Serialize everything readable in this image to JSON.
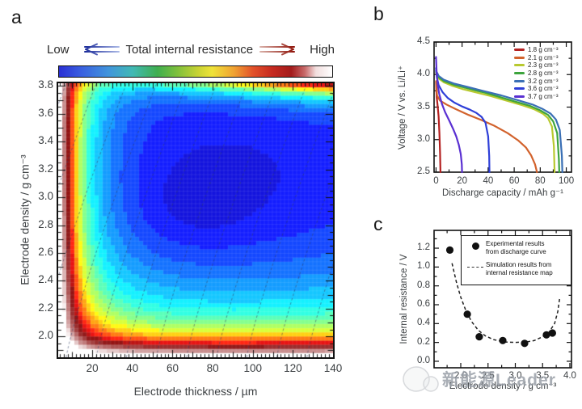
{
  "panel_labels": {
    "a": "a",
    "b": "b",
    "c": "c"
  },
  "watermark": {
    "text": "新能源Leader"
  },
  "chart_data": [
    {
      "id": "a",
      "type": "heatmap",
      "colorbar": {
        "low": "Low",
        "title": "Total internal resistance",
        "high": "High",
        "gradient_stops": [
          {
            "c": "#2a2fd4",
            "p": 0
          },
          {
            "c": "#3a5fe0",
            "p": 8
          },
          {
            "c": "#4194dc",
            "p": 18
          },
          {
            "c": "#41b9b4",
            "p": 27
          },
          {
            "c": "#3fae4f",
            "p": 36
          },
          {
            "c": "#7cbf3d",
            "p": 43
          },
          {
            "c": "#c9d334",
            "p": 51
          },
          {
            "c": "#efe339",
            "p": 56
          },
          {
            "c": "#f0a232",
            "p": 64
          },
          {
            "c": "#e2512a",
            "p": 71
          },
          {
            "c": "#c62a20",
            "p": 78
          },
          {
            "c": "#a31b1b",
            "p": 85
          },
          {
            "c": "#c86a6a",
            "p": 90
          },
          {
            "c": "#f2dede",
            "p": 94
          },
          {
            "c": "#ffffff",
            "p": 100
          }
        ]
      },
      "xlabel": "Electrode thickness / µm",
      "ylabel": "Electrode density / g cm⁻³",
      "x_ticks": [
        20,
        40,
        60,
        80,
        100,
        120,
        140
      ],
      "y_ticks": [
        2.0,
        2.2,
        2.4,
        2.6,
        2.8,
        3.0,
        3.2,
        3.4,
        3.6,
        3.8
      ],
      "x_range": [
        3,
        140
      ],
      "y_range": [
        1.85,
        3.82
      ],
      "pattern": "Blue low-resistance basin at mid thickness (40-120 µm) and density 2.6-3.4 with darkest minimum near 70 µm / 2.9 g cm-3; resistance rises through green-yellow-red to white toward thin electrodes (<20 µm) and low density (<2.1), and a thin yellow-red band along the top edge near 3.8 g cm-3 that strengthens with thickness; dashed diagonal guide lines run from lower-left to upper-right",
      "model": {
        "base0": 0.085,
        "bt": 0.03,
        "tc": 78,
        "ts": 70,
        "bd": 0.06,
        "dc": 2.95,
        "ds": 0.9,
        "a1": 1.15,
        "l1": 5.0,
        "a2": 0.6,
        "l2": 16,
        "m1": 0.07,
        "m2": 0.38,
        "c0": 0.1,
        "c1": 0.85,
        "dtopRef": 3.82,
        "w": 0.08,
        "blobAmp": 0.04,
        "blobT": 72,
        "blobTs": 30,
        "blobD": 2.92,
        "blobDs": 0.3,
        "step": 0.045
      },
      "contour_lines": {
        "count": 13,
        "t0_start": -38,
        "spacing": 15,
        "rise": 45,
        "exp": 1.15
      }
    },
    {
      "id": "b",
      "type": "line",
      "xlabel": "Discharge capacity / mAh g⁻¹",
      "ylabel": "Voltage / V vs. Li/Li⁺",
      "x_ticks": [
        0,
        20,
        40,
        60,
        80,
        100
      ],
      "y_ticks": [
        2.5,
        3.0,
        3.5,
        4.0,
        4.5
      ],
      "xlim": [
        0,
        100
      ],
      "ylim": [
        2.5,
        4.5
      ],
      "series": [
        {
          "label": "1.8 g cm⁻³",
          "color": "#b42121",
          "points": [
            [
              0,
              3.88
            ],
            [
              0.5,
              3.66
            ],
            [
              1.2,
              3.52
            ],
            [
              2,
              3.36
            ],
            [
              2.6,
              3.1
            ],
            [
              3.1,
              2.8
            ],
            [
              3.4,
              2.5
            ]
          ]
        },
        {
          "label": "2.1 g cm⁻³",
          "color": "#d2622c",
          "points": [
            [
              0,
              3.9
            ],
            [
              0.8,
              3.68
            ],
            [
              3,
              3.6
            ],
            [
              8,
              3.54
            ],
            [
              15,
              3.47
            ],
            [
              25,
              3.38
            ],
            [
              35,
              3.3
            ],
            [
              45,
              3.21
            ],
            [
              55,
              3.1
            ],
            [
              63,
              2.99
            ],
            [
              69,
              2.88
            ],
            [
              73,
              2.76
            ],
            [
              76,
              2.62
            ],
            [
              77.5,
              2.5
            ]
          ]
        },
        {
          "label": "2.3 g cm⁻³",
          "color": "#b8c92f",
          "points": [
            [
              0,
              4.02
            ],
            [
              2,
              3.94
            ],
            [
              6,
              3.88
            ],
            [
              12,
              3.83
            ],
            [
              20,
              3.78
            ],
            [
              30,
              3.73
            ],
            [
              42,
              3.67
            ],
            [
              54,
              3.6
            ],
            [
              66,
              3.53
            ],
            [
              75,
              3.47
            ],
            [
              82,
              3.4
            ],
            [
              86,
              3.33
            ],
            [
              89,
              3.2
            ],
            [
              90.5,
              2.9
            ],
            [
              91,
              2.5
            ]
          ]
        },
        {
          "label": "2.8 g cm⁻³",
          "color": "#3da43d",
          "points": [
            [
              0,
              4.04
            ],
            [
              2,
              3.96
            ],
            [
              6,
              3.9
            ],
            [
              14,
              3.84
            ],
            [
              24,
              3.79
            ],
            [
              36,
              3.73
            ],
            [
              48,
              3.66
            ],
            [
              60,
              3.59
            ],
            [
              72,
              3.52
            ],
            [
              80,
              3.45
            ],
            [
              86,
              3.38
            ],
            [
              90,
              3.28
            ],
            [
              93,
              3.1
            ],
            [
              94.3,
              2.7
            ],
            [
              94.6,
              2.5
            ]
          ]
        },
        {
          "label": "3.2 g cm⁻³",
          "color": "#3a6fb5",
          "points": [
            [
              0,
              4.06
            ],
            [
              2,
              3.98
            ],
            [
              6,
              3.92
            ],
            [
              14,
              3.86
            ],
            [
              24,
              3.81
            ],
            [
              36,
              3.75
            ],
            [
              50,
              3.68
            ],
            [
              62,
              3.61
            ],
            [
              74,
              3.54
            ],
            [
              82,
              3.47
            ],
            [
              88,
              3.4
            ],
            [
              92,
              3.31
            ],
            [
              95,
              3.15
            ],
            [
              96.6,
              2.75
            ],
            [
              97,
              2.5
            ]
          ]
        },
        {
          "label": "3.6 g cm⁻³",
          "color": "#2e3fd8",
          "points": [
            [
              0,
              4.1
            ],
            [
              0.6,
              3.96
            ],
            [
              2,
              3.84
            ],
            [
              5,
              3.73
            ],
            [
              9,
              3.64
            ],
            [
              14,
              3.57
            ],
            [
              20,
              3.51
            ],
            [
              26,
              3.46
            ],
            [
              31,
              3.41
            ],
            [
              35,
              3.35
            ],
            [
              38,
              3.26
            ],
            [
              40,
              3.05
            ],
            [
              40.8,
              2.75
            ],
            [
              41,
              2.5
            ]
          ]
        },
        {
          "label": "3.7 g cm⁻³",
          "color": "#5a30d2",
          "points": [
            [
              0,
              4.27
            ],
            [
              0.4,
              4.05
            ],
            [
              1.2,
              3.85
            ],
            [
              2.5,
              3.7
            ],
            [
              4.5,
              3.55
            ],
            [
              7,
              3.42
            ],
            [
              10,
              3.3
            ],
            [
              13,
              3.17
            ],
            [
              15.5,
              3.05
            ],
            [
              17.5,
              2.92
            ],
            [
              19,
              2.78
            ],
            [
              19.8,
              2.62
            ],
            [
              20,
              2.5
            ]
          ]
        }
      ]
    },
    {
      "id": "c",
      "type": "scatter",
      "xlabel": "Electrode density / g cm⁻³",
      "ylabel": "Internal resistance / V",
      "x_ticks": [
        2.0,
        2.5,
        3.0,
        3.5,
        4.0
      ],
      "y_ticks": [
        0.0,
        0.2,
        0.4,
        0.6,
        0.8,
        1.0,
        1.2
      ],
      "xlim": [
        1.5,
        4.0
      ],
      "ylim": [
        0.0,
        1.2
      ],
      "legend": {
        "exp_line1": "Experimental results",
        "exp_line2": "from discharge curve",
        "sim_line1": "Simulation results from",
        "sim_line2": "internal resistance map"
      },
      "experimental_points": [
        [
          1.8,
          1.18
        ],
        [
          2.12,
          0.5
        ],
        [
          2.34,
          0.26
        ],
        [
          2.77,
          0.22
        ],
        [
          3.17,
          0.19
        ],
        [
          3.57,
          0.28
        ],
        [
          3.68,
          0.3
        ]
      ],
      "simulation_curve": [
        [
          1.84,
          1.04
        ],
        [
          1.92,
          0.84
        ],
        [
          2.0,
          0.68
        ],
        [
          2.1,
          0.53
        ],
        [
          2.2,
          0.42
        ],
        [
          2.32,
          0.33
        ],
        [
          2.45,
          0.27
        ],
        [
          2.6,
          0.23
        ],
        [
          2.8,
          0.205
        ],
        [
          3.0,
          0.2
        ],
        [
          3.2,
          0.205
        ],
        [
          3.35,
          0.22
        ],
        [
          3.5,
          0.26
        ],
        [
          3.62,
          0.31
        ],
        [
          3.72,
          0.4
        ],
        [
          3.78,
          0.53
        ],
        [
          3.81,
          0.66
        ]
      ]
    }
  ]
}
